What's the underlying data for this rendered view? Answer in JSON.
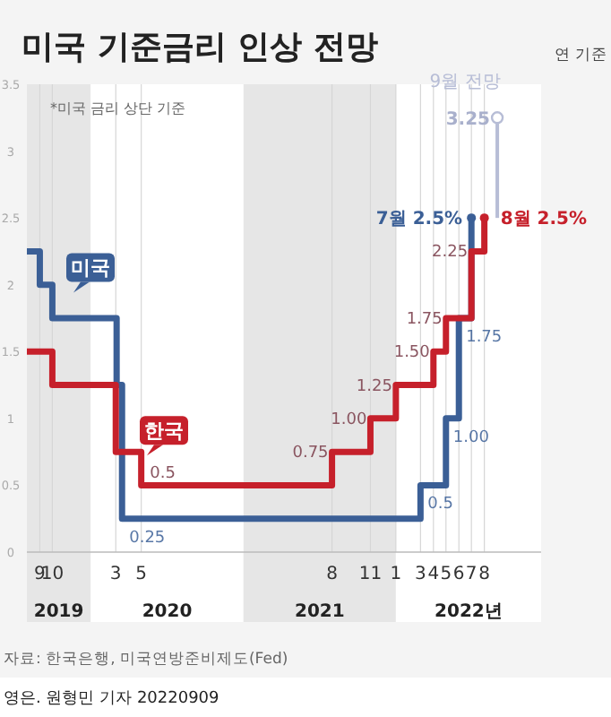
{
  "chart_data": {
    "type": "step",
    "title": "미국 기준금리 인상 전망",
    "annotations": [
      "*미국 금리 상단 기준",
      "연 기준",
      "자료: 한국은행, 미국연방준비제도(Fed)",
      "영은. 원형민 기자 20220909",
      {
        "text": "7월 2.5%",
        "x": "2022-07",
        "y": 2.5
      },
      {
        "text": "8월 2.5%",
        "x": "2022-08",
        "y": 2.5
      },
      {
        "text": "3.25",
        "x": "2022-09",
        "y": 3.25
      }
    ],
    "xlim": [
      "2019-08",
      "2022-12-15"
    ],
    "xticks": [
      {
        "value": "2019-09",
        "label": "9"
      },
      {
        "value": "2019-10",
        "label": "10"
      },
      {
        "value": "2020-03",
        "label": "3"
      },
      {
        "value": "2020-05",
        "label": "5"
      },
      {
        "value": "2021-08",
        "label": "8"
      },
      {
        "value": "2021-11",
        "label": "11"
      },
      {
        "value": "2022-01",
        "label": "1"
      },
      {
        "value": "2022-03",
        "label": "3"
      },
      {
        "value": "2022-04",
        "label": "4"
      },
      {
        "value": "2022-05",
        "label": "5"
      },
      {
        "value": "2022-06",
        "label": "6"
      },
      {
        "value": "2022-07",
        "label": "7"
      },
      {
        "value": "2022-08",
        "label": "8"
      }
    ],
    "ylim": [
      0,
      3.5
    ],
    "yticks": [
      0,
      0.5,
      1.0,
      1.5,
      2.0,
      2.5,
      3.0,
      3.5
    ],
    "grid": "x",
    "bands": [
      {
        "axis": "x",
        "from": "2019-08",
        "to": "2020-01",
        "label": "2019",
        "color": "#e6e6e6"
      },
      {
        "axis": "x",
        "from": "2020-01",
        "to": "2021-01",
        "label": "2020",
        "color": "#ffffff"
      },
      {
        "axis": "x",
        "from": "2021-01",
        "to": "2022-01",
        "label": "2021",
        "color": "#e6e6e6"
      },
      {
        "axis": "x",
        "from": "2022-01",
        "to": "2022-12-15",
        "label": "2022년",
        "color": "#ffffff"
      }
    ],
    "series": [
      {
        "name": "미국",
        "color": "#3b5f96",
        "x": [
          "2019-08",
          "2019-09",
          "2019-10",
          "2020-03-03",
          "2020-03-16",
          "2022-03",
          "2022-05",
          "2022-06",
          "2022-07"
        ],
        "values": [
          2.25,
          2.0,
          1.75,
          1.25,
          0.25,
          0.5,
          1.0,
          1.75,
          2.5
        ],
        "value_labels": [
          null,
          null,
          null,
          null,
          "0.25",
          "0.5",
          "1.00",
          "1.75",
          null
        ]
      },
      {
        "name": "한국",
        "color": "#c6202b",
        "x": [
          "2019-08",
          "2019-10",
          "2020-03",
          "2020-05",
          "2021-08",
          "2021-11",
          "2022-01",
          "2022-04",
          "2022-05",
          "2022-07",
          "2022-08"
        ],
        "values": [
          1.5,
          1.25,
          0.75,
          0.5,
          0.75,
          1.0,
          1.25,
          1.5,
          1.75,
          2.25,
          2.5
        ],
        "value_labels": [
          null,
          null,
          null,
          "0.5",
          "0.75",
          "1.00",
          "1.25",
          "1.50",
          "1.75",
          "2.25",
          null
        ]
      },
      {
        "name": "9월 전망",
        "type": "line",
        "color": "#b7bdd6",
        "x": [
          "2022-09",
          "2022-09"
        ],
        "values": [
          2.5,
          3.25
        ]
      }
    ]
  }
}
